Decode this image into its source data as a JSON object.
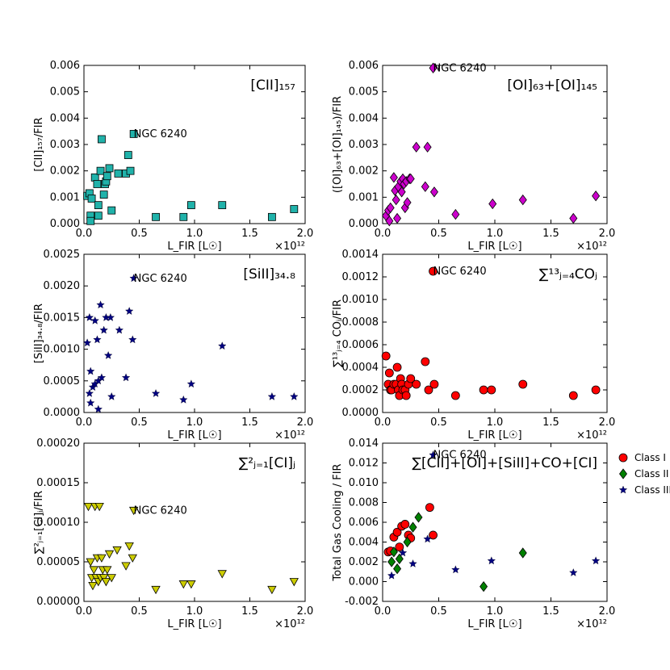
{
  "figure": {
    "multiplier_label": "×10¹²"
  },
  "legend": {
    "entries": [
      {
        "label": "Class I",
        "marker": "circle",
        "color": "#ff0000"
      },
      {
        "label": "Class II",
        "marker": "diamond",
        "color": "#008000"
      },
      {
        "label": "Class III",
        "marker": "star",
        "color": "#000080"
      }
    ]
  },
  "chart_data": [
    {
      "type": "scatter",
      "title": "[CII]₁₅₇",
      "ylabel": "[CII]₁₅₇/FIR",
      "xlabel": "L_FIR [L☉]",
      "xlim": [
        0,
        2.0
      ],
      "ylim": [
        0,
        0.006
      ],
      "xticks": [
        "0.0",
        "0.5",
        "1.0",
        "1.5",
        "2.0"
      ],
      "yticks": [
        "0.000",
        "0.001",
        "0.002",
        "0.003",
        "0.004",
        "0.005",
        "0.006"
      ],
      "marker": "square",
      "color": "#20b2aa",
      "annotation": {
        "text": "NGC 6240",
        "x": 0.45,
        "y": 0.0034
      },
      "points": [
        [
          0.03,
          0.00105
        ],
        [
          0.05,
          0.00115
        ],
        [
          0.06,
          0.0003
        ],
        [
          0.07,
          0.00095
        ],
        [
          0.06,
          0.0001
        ],
        [
          0.1,
          0.00175
        ],
        [
          0.12,
          0.0015
        ],
        [
          0.13,
          0.0007
        ],
        [
          0.13,
          0.0003
        ],
        [
          0.15,
          0.002
        ],
        [
          0.16,
          0.0032
        ],
        [
          0.18,
          0.0011
        ],
        [
          0.19,
          0.0015
        ],
        [
          0.2,
          0.0016
        ],
        [
          0.21,
          0.0018
        ],
        [
          0.23,
          0.0021
        ],
        [
          0.25,
          0.0005
        ],
        [
          0.31,
          0.0019
        ],
        [
          0.38,
          0.0019
        ],
        [
          0.4,
          0.0026
        ],
        [
          0.42,
          0.002
        ],
        [
          0.45,
          0.0034
        ],
        [
          0.65,
          0.00025
        ],
        [
          0.9,
          0.00025
        ],
        [
          0.97,
          0.0007
        ],
        [
          1.25,
          0.0007
        ],
        [
          1.7,
          0.00025
        ],
        [
          1.9,
          0.00055
        ]
      ]
    },
    {
      "type": "scatter",
      "title": "[OI]₆₃+[OI]₁₄₅",
      "ylabel": "([OI]₆₃+[OI]₁₄₅)/FIR",
      "xlabel": "L_FIR [L☉]",
      "xlim": [
        0,
        2.0
      ],
      "ylim": [
        0,
        0.006
      ],
      "xticks": [
        "0.0",
        "0.5",
        "1.0",
        "1.5",
        "2.0"
      ],
      "yticks": [
        "0.000",
        "0.001",
        "0.002",
        "0.003",
        "0.004",
        "0.005",
        "0.006"
      ],
      "marker": "diamond",
      "color": "#cc00cc",
      "annotation": {
        "text": "NGC 6240",
        "x": 0.45,
        "y": 0.0059
      },
      "points": [
        [
          0.03,
          0.0003
        ],
        [
          0.05,
          0.0005
        ],
        [
          0.06,
          0.0001
        ],
        [
          0.07,
          0.0006
        ],
        [
          0.1,
          0.00175
        ],
        [
          0.11,
          0.00125
        ],
        [
          0.12,
          0.0009
        ],
        [
          0.13,
          0.0002
        ],
        [
          0.14,
          0.0014
        ],
        [
          0.16,
          0.0016
        ],
        [
          0.17,
          0.0012
        ],
        [
          0.18,
          0.0017
        ],
        [
          0.19,
          0.0015
        ],
        [
          0.2,
          0.0006
        ],
        [
          0.21,
          0.0016
        ],
        [
          0.22,
          0.0008
        ],
        [
          0.24,
          0.0017
        ],
        [
          0.25,
          0.0017
        ],
        [
          0.3,
          0.0029
        ],
        [
          0.4,
          0.0029
        ],
        [
          0.38,
          0.0014
        ],
        [
          0.45,
          0.0059
        ],
        [
          0.46,
          0.0012
        ],
        [
          0.65,
          0.00035
        ],
        [
          0.98,
          0.00075
        ],
        [
          1.25,
          0.0009
        ],
        [
          1.7,
          0.0002
        ],
        [
          1.9,
          0.00105
        ]
      ]
    },
    {
      "type": "scatter",
      "title": "[SiII]₃₄.₈",
      "ylabel": "[SiII]₃₄.₈/FIR",
      "xlabel": "L_FIR [L☉]",
      "xlim": [
        0,
        2.0
      ],
      "ylim": [
        0,
        0.0025
      ],
      "xticks": [
        "0.0",
        "0.5",
        "1.0",
        "1.5",
        "2.0"
      ],
      "yticks": [
        "0.0000",
        "0.0005",
        "0.0010",
        "0.0015",
        "0.0020",
        "0.0025"
      ],
      "marker": "star",
      "color": "#000080",
      "annotation": {
        "text": "NGC 6240",
        "x": 0.45,
        "y": 0.00212
      },
      "points": [
        [
          0.03,
          0.0011
        ],
        [
          0.05,
          0.0015
        ],
        [
          0.06,
          0.00065
        ],
        [
          0.05,
          0.0003
        ],
        [
          0.06,
          0.00015
        ],
        [
          0.08,
          0.0004
        ],
        [
          0.1,
          0.00145
        ],
        [
          0.1,
          0.00045
        ],
        [
          0.12,
          0.00115
        ],
        [
          0.13,
          0.0005
        ],
        [
          0.13,
          5e-05
        ],
        [
          0.15,
          0.0017
        ],
        [
          0.16,
          0.00055
        ],
        [
          0.18,
          0.0013
        ],
        [
          0.2,
          0.0015
        ],
        [
          0.22,
          0.0009
        ],
        [
          0.24,
          0.0015
        ],
        [
          0.25,
          0.00025
        ],
        [
          0.32,
          0.0013
        ],
        [
          0.38,
          0.00055
        ],
        [
          0.41,
          0.0016
        ],
        [
          0.44,
          0.00115
        ],
        [
          0.45,
          0.00212
        ],
        [
          0.65,
          0.0003
        ],
        [
          0.9,
          0.0002
        ],
        [
          0.97,
          0.00045
        ],
        [
          1.25,
          0.00105
        ],
        [
          1.7,
          0.00025
        ],
        [
          1.9,
          0.00025
        ]
      ]
    },
    {
      "type": "scatter",
      "title": "∑¹³ⱼ₌₄COⱼ",
      "ylabel": "∑¹³ⱼ₌₄ COⱼ/FIR",
      "xlabel": "L_FIR [L☉]",
      "xlim": [
        0,
        2.0
      ],
      "ylim": [
        0,
        0.0014
      ],
      "xticks": [
        "0.0",
        "0.5",
        "1.0",
        "1.5",
        "2.0"
      ],
      "yticks": [
        "0.0000",
        "0.0002",
        "0.0004",
        "0.0006",
        "0.0008",
        "0.0010",
        "0.0012",
        "0.0014"
      ],
      "marker": "circle",
      "color": "#ff0000",
      "annotation": {
        "text": "NGC 6240",
        "x": 0.45,
        "y": 0.00125
      },
      "points": [
        [
          0.03,
          0.0005
        ],
        [
          0.05,
          0.00025
        ],
        [
          0.06,
          0.00035
        ],
        [
          0.07,
          0.0002
        ],
        [
          0.08,
          0.0002
        ],
        [
          0.1,
          0.00025
        ],
        [
          0.12,
          0.00025
        ],
        [
          0.13,
          0.0004
        ],
        [
          0.14,
          0.0002
        ],
        [
          0.15,
          0.00015
        ],
        [
          0.16,
          0.0003
        ],
        [
          0.17,
          0.00025
        ],
        [
          0.18,
          0.0002
        ],
        [
          0.2,
          0.0002
        ],
        [
          0.21,
          0.00015
        ],
        [
          0.23,
          0.00025
        ],
        [
          0.25,
          0.0003
        ],
        [
          0.3,
          0.00025
        ],
        [
          0.38,
          0.00045
        ],
        [
          0.41,
          0.0002
        ],
        [
          0.45,
          0.00125
        ],
        [
          0.46,
          0.00025
        ],
        [
          0.65,
          0.00015
        ],
        [
          0.9,
          0.0002
        ],
        [
          0.97,
          0.0002
        ],
        [
          1.25,
          0.00025
        ],
        [
          1.7,
          0.00015
        ],
        [
          1.9,
          0.0002
        ]
      ]
    },
    {
      "type": "scatter",
      "title": "∑²ⱼ₌₁[CI]ⱼ",
      "ylabel": "∑²ⱼ₌₁[CI]ⱼ/FIR",
      "xlabel": "L_FIR [L☉]",
      "xlim": [
        0,
        2.0
      ],
      "ylim": [
        0,
        0.0002
      ],
      "xticks": [
        "0.0",
        "0.5",
        "1.0",
        "1.5",
        "2.0"
      ],
      "yticks": [
        "0.00000",
        "0.00005",
        "0.00010",
        "0.00015",
        "0.00020"
      ],
      "marker": "triangle-down",
      "color": "#cccc00",
      "annotation": {
        "text": "NGC 6240",
        "x": 0.45,
        "y": 0.000115
      },
      "points": [
        [
          0.04,
          0.00012
        ],
        [
          0.06,
          5e-05
        ],
        [
          0.07,
          3e-05
        ],
        [
          0.08,
          2e-05
        ],
        [
          0.09,
          4e-05
        ],
        [
          0.1,
          0.00012
        ],
        [
          0.11,
          3e-05
        ],
        [
          0.12,
          5.5e-05
        ],
        [
          0.13,
          2.5e-05
        ],
        [
          0.14,
          0.00012
        ],
        [
          0.15,
          3e-05
        ],
        [
          0.16,
          5.5e-05
        ],
        [
          0.17,
          4e-05
        ],
        [
          0.18,
          3e-05
        ],
        [
          0.2,
          2.5e-05
        ],
        [
          0.21,
          4e-05
        ],
        [
          0.23,
          6e-05
        ],
        [
          0.25,
          3e-05
        ],
        [
          0.3,
          6.5e-05
        ],
        [
          0.38,
          4.5e-05
        ],
        [
          0.41,
          7e-05
        ],
        [
          0.44,
          5.5e-05
        ],
        [
          0.45,
          0.000115
        ],
        [
          0.65,
          1.5e-05
        ],
        [
          0.9,
          2.2e-05
        ],
        [
          0.97,
          2.2e-05
        ],
        [
          1.25,
          3.5e-05
        ],
        [
          1.7,
          1.5e-05
        ],
        [
          1.9,
          2.5e-05
        ]
      ]
    },
    {
      "type": "scatter",
      "title": "∑[CII]+[OI]+[SiII]+CO+[CI]",
      "ylabel": "Total Gas Cooling / FIR",
      "xlabel": "L_FIR [L☉]",
      "xlim": [
        0,
        2.0
      ],
      "ylim": [
        -0.002,
        0.014
      ],
      "xticks": [
        "0.0",
        "0.5",
        "1.0",
        "1.5",
        "2.0"
      ],
      "yticks": [
        "-0.002",
        "0.000",
        "0.002",
        "0.004",
        "0.006",
        "0.008",
        "0.010",
        "0.012",
        "0.014"
      ],
      "annotation": {
        "text": "NGC 6240",
        "x": 0.45,
        "y": 0.0128
      },
      "series": [
        {
          "name": "Class I",
          "marker": "circle",
          "color": "#ff0000",
          "points": [
            [
              0.05,
              0.003
            ],
            [
              0.07,
              0.0031
            ],
            [
              0.1,
              0.0045
            ],
            [
              0.13,
              0.005
            ],
            [
              0.15,
              0.0035
            ],
            [
              0.17,
              0.0056
            ],
            [
              0.2,
              0.0058
            ],
            [
              0.23,
              0.0047
            ],
            [
              0.25,
              0.0044
            ],
            [
              0.42,
              0.0075
            ],
            [
              0.45,
              0.0047
            ]
          ]
        },
        {
          "name": "Class II",
          "marker": "diamond",
          "color": "#008000",
          "points": [
            [
              0.08,
              0.002
            ],
            [
              0.1,
              0.003
            ],
            [
              0.13,
              0.0013
            ],
            [
              0.15,
              0.0023
            ],
            [
              0.22,
              0.004
            ],
            [
              0.27,
              0.0055
            ],
            [
              0.32,
              0.0065
            ],
            [
              0.9,
              -0.0005
            ],
            [
              1.25,
              0.0029
            ]
          ]
        },
        {
          "name": "Class III",
          "marker": "star",
          "color": "#000080",
          "points": [
            [
              0.08,
              0.0006
            ],
            [
              0.18,
              0.0029
            ],
            [
              0.27,
              0.0018
            ],
            [
              0.4,
              0.0043
            ],
            [
              0.45,
              0.0128
            ],
            [
              0.65,
              0.0012
            ],
            [
              0.97,
              0.0021
            ],
            [
              1.7,
              0.0009
            ],
            [
              1.9,
              0.0021
            ]
          ]
        }
      ]
    }
  ]
}
